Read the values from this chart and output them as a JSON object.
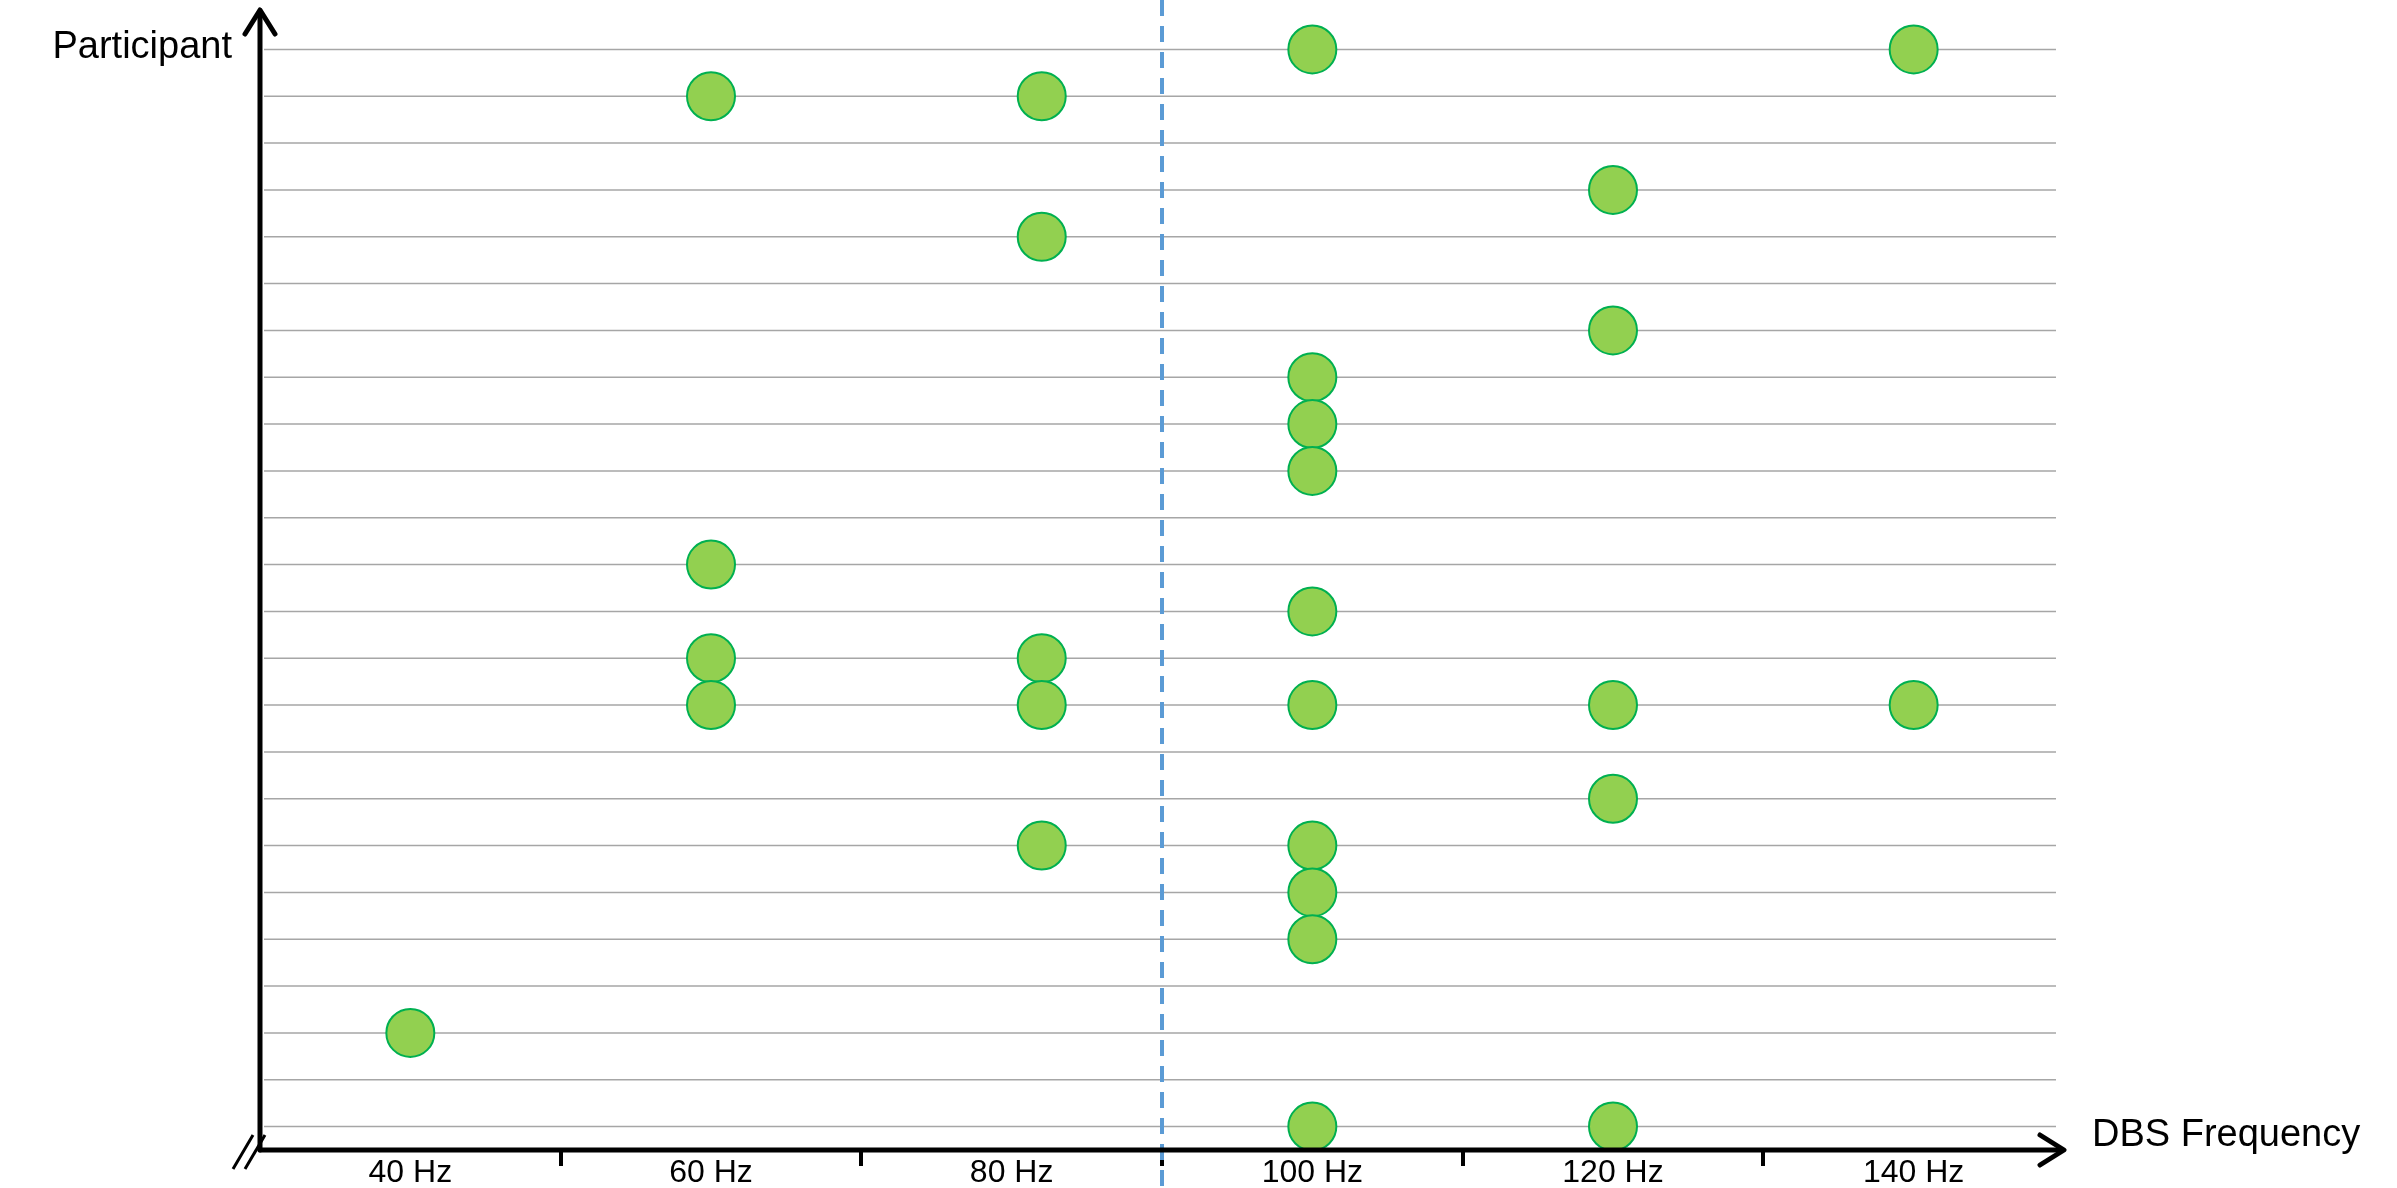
{
  "chart_data": {
    "type": "scatter",
    "orientation": "horizontal",
    "xlabel": "DBS Frequency",
    "ylabel": "Participant",
    "categories": [
      null,
      null,
      null,
      null,
      null,
      null,
      null,
      null,
      null,
      null,
      null,
      null,
      null,
      null,
      null,
      null,
      null,
      null,
      null,
      null,
      null,
      null,
      null,
      null
    ],
    "series": [
      {
        "color": "#92d050",
        "values": [
          null,
          null,
          null,
          null,
          null,
          null,
          null,
          null,
          null,
          null,
          null,
          null,
          null,
          null,
          null,
          null,
          null,
          null,
          null,
          null,
          null,
          40,
          null,
          null
        ]
      },
      {
        "color": "#92d050",
        "values": [
          null,
          60,
          null,
          null,
          null,
          null,
          null,
          null,
          null,
          null,
          null,
          60,
          null,
          60,
          60,
          null,
          null,
          null,
          null,
          null,
          null,
          null,
          null,
          null
        ]
      },
      {
        "color": "#92d050",
        "values": [
          null,
          82,
          null,
          null,
          82,
          null,
          null,
          null,
          null,
          null,
          null,
          null,
          null,
          82,
          82,
          null,
          null,
          82,
          null,
          null,
          null,
          null,
          null,
          null
        ]
      },
      {
        "color": "#92d050",
        "values": [
          100,
          null,
          null,
          null,
          null,
          null,
          null,
          100,
          100,
          100,
          null,
          null,
          100,
          null,
          100,
          null,
          null,
          100,
          100,
          100,
          null,
          null,
          null,
          100
        ]
      },
      {
        "color": "#92d050",
        "values": [
          null,
          null,
          null,
          120,
          null,
          null,
          120,
          null,
          null,
          null,
          null,
          null,
          null,
          null,
          120,
          null,
          120,
          null,
          null,
          null,
          null,
          null,
          null,
          120
        ]
      },
      {
        "color": "#92d050",
        "values": [
          140,
          null,
          null,
          null,
          null,
          null,
          null,
          null,
          null,
          null,
          null,
          null,
          null,
          null,
          140,
          null,
          null,
          null,
          null,
          null,
          null,
          null,
          null,
          null
        ]
      }
    ],
    "xlim": [
      30,
      150
    ],
    "xticks": [
      {
        "value": 40,
        "label": "40 Hz"
      },
      {
        "value": 50,
        "label": null
      },
      {
        "value": 60,
        "label": "60 Hz"
      },
      {
        "value": 70,
        "label": null
      },
      {
        "value": 80,
        "label": "80 Hz"
      },
      {
        "value": 90,
        "label": null
      },
      {
        "value": 100,
        "label": "100 Hz"
      },
      {
        "value": 110,
        "label": null
      },
      {
        "value": 120,
        "label": "120 Hz"
      },
      {
        "value": 130,
        "label": null
      },
      {
        "value": 140,
        "label": "140 Hz"
      }
    ],
    "ref_lines": [
      {
        "axis": "x",
        "value": 90,
        "color": "#5b9bd5",
        "line_style": "dashed"
      }
    ],
    "grid": "y",
    "legend": false,
    "tick_labels": "x",
    "marker": "circle"
  }
}
